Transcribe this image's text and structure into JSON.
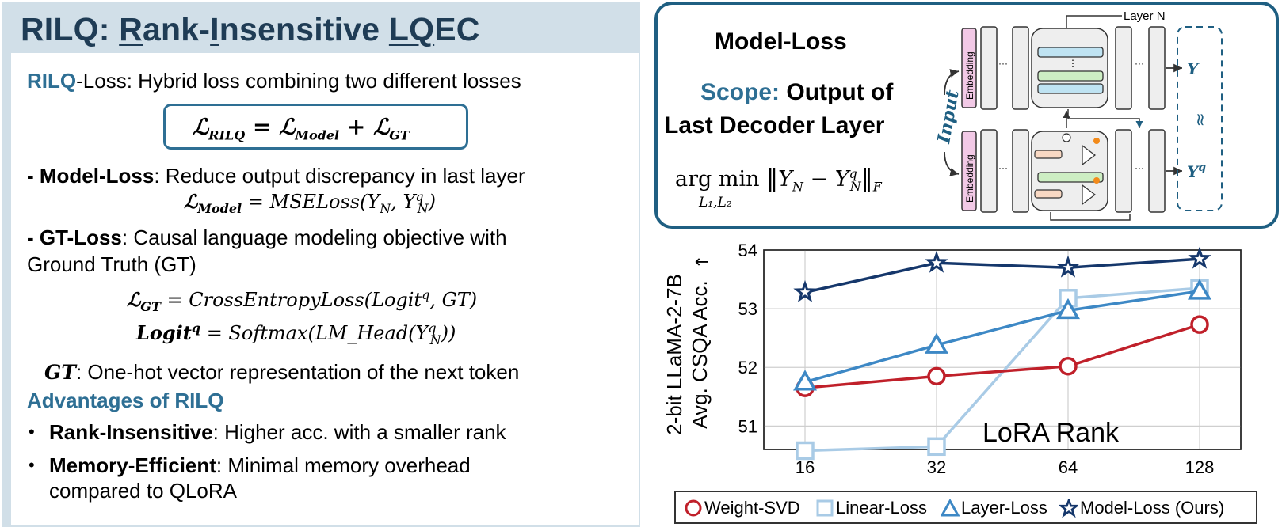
{
  "left": {
    "title_rilq": "RILQ",
    "title_colon": ": ",
    "title_r": "R",
    "title_ank": "ank-",
    "title_i": "I",
    "title_nsensitive": "nsensitive ",
    "title_lq": "LQ",
    "title_ec": "EC",
    "rilq_word": "RILQ",
    "rilq_loss_desc": "-Loss: Hybrid loss combining two different losses",
    "main_eq": {
      "lhs": "ℒ",
      "lhs_sub": "RILQ",
      "eq": " = ",
      "t1": "ℒ",
      "t1_sub": "Model",
      "plus": " + ",
      "t2": "ℒ",
      "t2_sub": "GT"
    },
    "model_loss_title": "- Model-Loss",
    "model_loss_desc": ": Reduce output discrepancy in last layer",
    "model_eq": {
      "lhs": "ℒ",
      "lhs_sub": "Model",
      "rhs": " = MSELoss(Y",
      "sub_n": "N",
      "comma": ", Y",
      "sup_q": "q",
      "sub_n2": "N",
      "close": ")"
    },
    "gt_loss_title": "- GT-Loss",
    "gt_loss_desc": ": Causal language modeling objective with",
    "gt_loss_desc2": "Ground Truth (GT)",
    "gt_eq": {
      "lhs": "ℒ",
      "lhs_sub": "GT",
      "rhs": " = CrossEntropyLoss(Logit",
      "sup_q": "q",
      "end": ", GT)"
    },
    "logit_eq": {
      "lhs": "Logit",
      "sup_q": "q",
      "rhs": " = Softmax(LM_Head(Y",
      "sup_q2": "q",
      "sub_n": "N",
      "end": "))"
    },
    "gt_def_sym": "GT",
    "gt_def_desc": ": One-hot vector representation of the next token",
    "adv_title": "Advantages of RILQ",
    "bullet": "•",
    "adv1_title": "Rank-Insensitive",
    "adv1_desc": ": Higher acc. with a smaller rank",
    "adv2_title": "Memory-Efficient",
    "adv2_desc": ": Minimal memory overhead",
    "adv2_desc2": "compared to QLoRA"
  },
  "diagram": {
    "title": "Model-Loss",
    "scope_label": "Scope:",
    "scope_desc1": "Output of",
    "scope_desc2": "Last Decoder Layer",
    "argmin": "arg min",
    "argmin_sub": "L₁,L₂",
    "norm_expr_y": "Y",
    "norm_sub_n": "N",
    "norm_minus": " − Y",
    "norm_sup_q": "q",
    "norm_sub_n2": "N",
    "norm_sub_f": "F",
    "layer_n": "Layer N",
    "input_label": "Input",
    "embedding": "Embedding",
    "out_y": "Y",
    "out_yq": "Y",
    "out_yq_sup": "q",
    "approx": "≈",
    "dots": "···",
    "vdots": "⋮"
  },
  "colors": {
    "accent_teal": "#2e6f94",
    "title_navy": "#1f3c55",
    "panel_bg": "#d1dfe8",
    "weight_svd": "#c0202a",
    "linear_loss": "#a9cbe6",
    "layer_loss": "#3d88c5",
    "model_loss": "#15376b",
    "embedding_fill": "#f2c9e6"
  },
  "chart_data": {
    "type": "line",
    "categories": [
      "16",
      "32",
      "64",
      "128"
    ],
    "ylabel_line1": "2-bit LLaMA-2-7B",
    "ylabel_line2": "Avg. CSQA Acc.",
    "ylabel_arrow": "→",
    "xlabel": "LoRA Rank",
    "ylim": [
      50.6,
      54
    ],
    "yticks": [
      "51",
      "52",
      "53",
      "54"
    ],
    "grid": true,
    "legend_position": "bottom",
    "series": [
      {
        "name": "Weight-SVD",
        "marker": "circle",
        "color": "#c0202a",
        "values": [
          51.65,
          51.85,
          52.02,
          52.73
        ]
      },
      {
        "name": "Linear-Loss",
        "marker": "square",
        "color": "#a9cbe6",
        "values": [
          50.58,
          50.65,
          53.18,
          53.35
        ]
      },
      {
        "name": "Layer-Loss",
        "marker": "triangle",
        "color": "#3d88c5",
        "values": [
          51.75,
          52.38,
          52.97,
          53.3
        ]
      },
      {
        "name": "Model-Loss (Ours)",
        "marker": "star",
        "color": "#15376b",
        "values": [
          53.28,
          53.78,
          53.7,
          53.85
        ]
      }
    ]
  }
}
